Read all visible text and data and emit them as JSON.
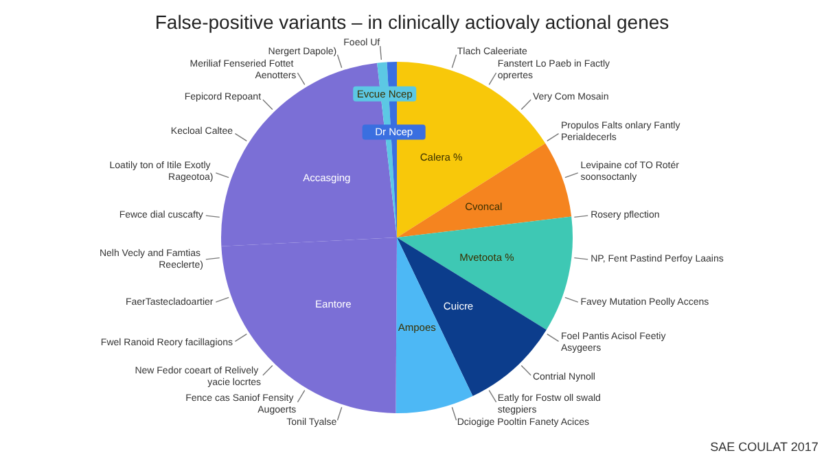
{
  "chart_data": {
    "type": "pie",
    "title": "False-positive variants – in clinically actiovaly actional genes",
    "categories": [
      "Calera %",
      "Cvoncal",
      "Mvetoota %",
      "Cuicre",
      "Ampoes",
      "Eantore",
      "Accasging",
      "Evcue Ncep",
      "Dr Ncep"
    ],
    "values": [
      16,
      7.1,
      10.7,
      9.1,
      7.2,
      24.1,
      24,
      0.9,
      0.9
    ],
    "colors": [
      "#f8c80a",
      "#f5841f",
      "#3ec8b4",
      "#0c3d8c",
      "#4db8f5",
      "#7b6fd6",
      "#7b6fd6",
      "#5cc8e4",
      "#3a6fe0"
    ],
    "data_labels": false,
    "legend": false,
    "annotations": [
      "Foeol Uf",
      "Tlach Caleeriate",
      "Fanstert Lo Paeb in Factly oprertes",
      "Very Com Mosain",
      "Propulos Falts onlary Fantly Perialdecerls",
      "Levipaine cof TO Rotér soonsoctanly",
      "Rosery pflection",
      "NP, Fent Pastind Perfoy Laains",
      "Favey Mutation Peolly Accens",
      "Foel Pantis Acisol Feetiy Asygeers",
      "Contrial Nynoll",
      "Eatly for Fostw oll swald stegpiers",
      "Dciogige Pooltin Fanety Acices",
      "Tonil Tyalse",
      "Fence cas Saniof Fensity Augoerts",
      "New Fedor coeart of Relively yacie locrtes",
      "Fwel Ranoid Reory facillagions",
      "FaerTastecladoartier",
      "Nelh Vecly and Famtias Reeclerte)",
      "Fewce dial cuscafty",
      "Loatily ton of Itile Exotly Rageotoa)",
      "Kecloal Caltee",
      "Fepicord Repoant",
      "Meriliaf Fenseried Fottet Aenotters",
      "Nergert Dapole)",
      "SAE COULAT 2017"
    ]
  }
}
